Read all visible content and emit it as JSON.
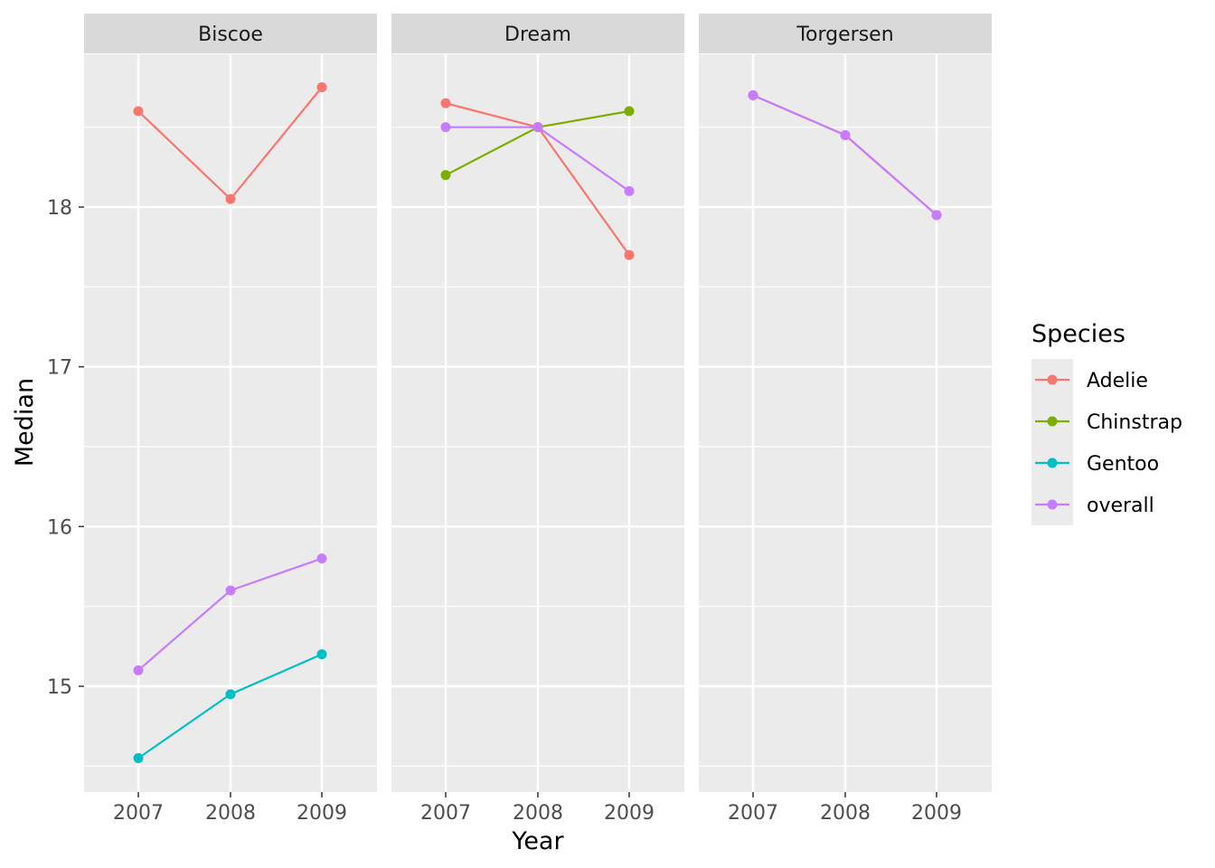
{
  "chart_data": {
    "type": "line",
    "xlabel": "Year",
    "ylabel": "Median",
    "x": [
      2007,
      2008,
      2009
    ],
    "x_tick_labels": [
      "2007",
      "2008",
      "2009"
    ],
    "ylim": [
      14.4,
      19.0
    ],
    "y_ticks": [
      15,
      16,
      17,
      18
    ],
    "y_tick_labels": [
      "15",
      "16",
      "17",
      "18"
    ],
    "grid": true,
    "legend": {
      "title": "Species",
      "placement": "right",
      "entries": [
        "Adelie",
        "Chinstrap",
        "Gentoo",
        "overall"
      ]
    },
    "colors": {
      "Adelie": "#F8766D",
      "Chinstrap": "#7CAE00",
      "Gentoo": "#00BFC4",
      "overall": "#C77CFF",
      "panel_bg": "#EBEBEB",
      "strip_bg": "#D9D9D9",
      "grid": "#FFFFFF"
    },
    "facets": [
      {
        "name": "Biscoe",
        "series": [
          {
            "name": "Adelie",
            "values": [
              18.6,
              18.05,
              18.75
            ]
          },
          {
            "name": "Gentoo",
            "values": [
              14.55,
              14.95,
              15.2
            ]
          },
          {
            "name": "overall",
            "values": [
              15.1,
              15.6,
              15.8
            ]
          }
        ]
      },
      {
        "name": "Dream",
        "series": [
          {
            "name": "Adelie",
            "values": [
              18.65,
              18.5,
              17.7
            ]
          },
          {
            "name": "Chinstrap",
            "values": [
              18.2,
              18.5,
              18.6
            ]
          },
          {
            "name": "overall",
            "values": [
              18.5,
              18.5,
              18.1
            ]
          }
        ]
      },
      {
        "name": "Torgersen",
        "series": [
          {
            "name": "Adelie",
            "values": [
              18.7,
              18.45,
              17.95
            ]
          },
          {
            "name": "overall",
            "values": [
              18.7,
              18.45,
              17.95
            ]
          }
        ]
      }
    ]
  }
}
